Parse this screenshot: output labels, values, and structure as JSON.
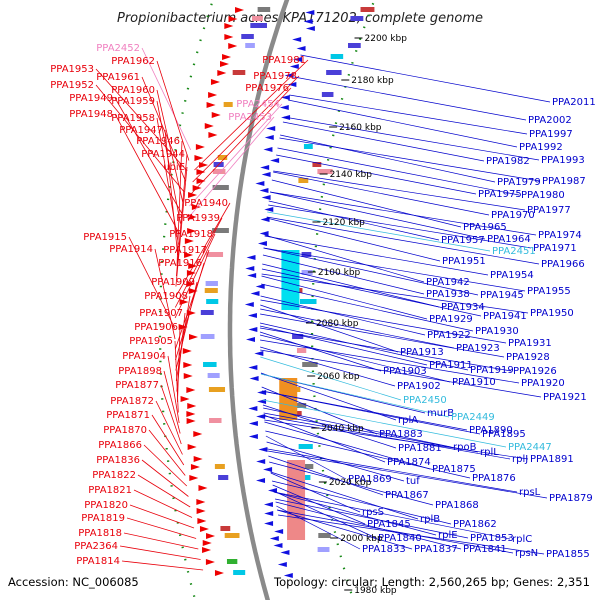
{
  "title": "Propionibacterium acnes KPA171202, complete genome",
  "footer": {
    "accession": "Accession: NC_006085",
    "topology": "Topology: circular; Length: 2,560,265 bp; Genes: 2,351"
  },
  "colors": {
    "left_label": "#e8000b",
    "right_label": "#0000cc",
    "rna_label_left": "#f080c0",
    "rna_label_right": "#33bbdd",
    "backbone": "#8a8a8a",
    "tick_dots": "#1a8a1a"
  },
  "ruler": [
    "2200 kbp",
    "2180 kbp",
    "2160 kbp",
    "2140 kbp",
    "2120 kbp",
    "2100 kbp",
    "2080 kbp",
    "2060 kbp",
    "2040 kbp",
    "2020 kbp",
    "2000 kbp",
    "1980 kbp"
  ],
  "left_labels": [
    {
      "text": "PPA2452",
      "kind": "rna"
    },
    {
      "text": "PPA1962",
      "kind": "gene"
    },
    {
      "text": "PPA1953",
      "kind": "gene"
    },
    {
      "text": "PPA1961",
      "kind": "gene"
    },
    {
      "text": "PPA1952",
      "kind": "gene"
    },
    {
      "text": "PPA1960",
      "kind": "gene"
    },
    {
      "text": "PPA1949",
      "kind": "gene"
    },
    {
      "text": "PPA1959",
      "kind": "gene"
    },
    {
      "text": "PPA1948",
      "kind": "gene"
    },
    {
      "text": "PPA1958",
      "kind": "gene"
    },
    {
      "text": "PPA1947",
      "kind": "gene"
    },
    {
      "text": "PPA1946",
      "kind": "gene"
    },
    {
      "text": "PPA1944",
      "kind": "gene"
    },
    {
      "text": "ubiE",
      "kind": "gene"
    },
    {
      "text": "PPA1940",
      "kind": "gene"
    },
    {
      "text": "PPA1939",
      "kind": "gene"
    },
    {
      "text": "PPA1918",
      "kind": "gene"
    },
    {
      "text": "PPA1915",
      "kind": "gene"
    },
    {
      "text": "PPA1914",
      "kind": "gene"
    },
    {
      "text": "PPA1917",
      "kind": "gene"
    },
    {
      "text": "PPA1916",
      "kind": "gene"
    },
    {
      "text": "PPA1909",
      "kind": "gene"
    },
    {
      "text": "PPA1908",
      "kind": "gene"
    },
    {
      "text": "PPA1907",
      "kind": "gene"
    },
    {
      "text": "PPA1906",
      "kind": "gene"
    },
    {
      "text": "PPA1905",
      "kind": "gene"
    },
    {
      "text": "PPA1904",
      "kind": "gene"
    },
    {
      "text": "PPA1898",
      "kind": "gene"
    },
    {
      "text": "PPA1877",
      "kind": "gene"
    },
    {
      "text": "PPA1872",
      "kind": "gene"
    },
    {
      "text": "PPA1871",
      "kind": "gene"
    },
    {
      "text": "PPA1870",
      "kind": "gene"
    },
    {
      "text": "PPA1866",
      "kind": "gene"
    },
    {
      "text": "PPA1836",
      "kind": "gene"
    },
    {
      "text": "PPA1822",
      "kind": "gene"
    },
    {
      "text": "PPA1821",
      "kind": "gene"
    },
    {
      "text": "PPA1820",
      "kind": "gene"
    },
    {
      "text": "PPA1819",
      "kind": "gene"
    },
    {
      "text": "PPA1818",
      "kind": "gene"
    },
    {
      "text": "PPA2364",
      "kind": "gene"
    },
    {
      "text": "PPA1814",
      "kind": "gene"
    }
  ],
  "inner_labels": [
    {
      "text": "PPA1981",
      "kind": "gene"
    },
    {
      "text": "PPA1978",
      "kind": "gene"
    },
    {
      "text": "PPA1976",
      "kind": "gene"
    },
    {
      "text": "PPA2454",
      "kind": "rna"
    },
    {
      "text": "PPA2453",
      "kind": "rna"
    }
  ],
  "right_labels": [
    {
      "text": "PPA2011",
      "kind": "gene"
    },
    {
      "text": "PPA2002",
      "kind": "gene"
    },
    {
      "text": "PPA1997",
      "kind": "gene"
    },
    {
      "text": "PPA1992",
      "kind": "gene"
    },
    {
      "text": "PPA1993",
      "kind": "gene"
    },
    {
      "text": "PPA1982",
      "kind": "gene"
    },
    {
      "text": "PPA1979",
      "kind": "gene"
    },
    {
      "text": "PPA1987",
      "kind": "gene"
    },
    {
      "text": "PPA1975",
      "kind": "gene"
    },
    {
      "text": "PPA1980",
      "kind": "gene"
    },
    {
      "text": "PPA1970",
      "kind": "gene"
    },
    {
      "text": "PPA1977",
      "kind": "gene"
    },
    {
      "text": "PPA1965",
      "kind": "gene"
    },
    {
      "text": "PPA1974",
      "kind": "gene"
    },
    {
      "text": "PPA1957",
      "kind": "gene"
    },
    {
      "text": "PPA1964",
      "kind": "gene"
    },
    {
      "text": "PPA1971",
      "kind": "gene"
    },
    {
      "text": "PPA2451",
      "kind": "rna"
    },
    {
      "text": "PPA1966",
      "kind": "gene"
    },
    {
      "text": "PPA1951",
      "kind": "gene"
    },
    {
      "text": "PPA1954",
      "kind": "gene"
    },
    {
      "text": "PPA1942",
      "kind": "gene"
    },
    {
      "text": "PPA1955",
      "kind": "gene"
    },
    {
      "text": "PPA1938",
      "kind": "gene"
    },
    {
      "text": "PPA1945",
      "kind": "gene"
    },
    {
      "text": "PPA1934",
      "kind": "gene"
    },
    {
      "text": "PPA1950",
      "kind": "gene"
    },
    {
      "text": "PPA1941",
      "kind": "gene"
    },
    {
      "text": "PPA1929",
      "kind": "gene"
    },
    {
      "text": "PPA1922",
      "kind": "gene"
    },
    {
      "text": "PPA1930",
      "kind": "gene"
    },
    {
      "text": "PPA1931",
      "kind": "gene"
    },
    {
      "text": "PPA1923",
      "kind": "gene"
    },
    {
      "text": "PPA1913",
      "kind": "gene"
    },
    {
      "text": "PPA1928",
      "kind": "gene"
    },
    {
      "text": "PPA1911",
      "kind": "gene"
    },
    {
      "text": "PPA1919",
      "kind": "gene"
    },
    {
      "text": "PPA1926",
      "kind": "gene"
    },
    {
      "text": "PPA1903",
      "kind": "gene"
    },
    {
      "text": "PPA1910",
      "kind": "gene"
    },
    {
      "text": "PPA1920",
      "kind": "gene"
    },
    {
      "text": "PPA1902",
      "kind": "gene"
    },
    {
      "text": "PPA1921",
      "kind": "gene"
    },
    {
      "text": "PPA2450",
      "kind": "rna"
    },
    {
      "text": "murB",
      "kind": "gene"
    },
    {
      "text": "rplA",
      "kind": "gene"
    },
    {
      "text": "PPA2449",
      "kind": "rna"
    },
    {
      "text": "PPA1890",
      "kind": "gene"
    },
    {
      "text": "PPA1883",
      "kind": "gene"
    },
    {
      "text": "PPA1895",
      "kind": "gene"
    },
    {
      "text": "rpoB",
      "kind": "gene"
    },
    {
      "text": "PPA2447",
      "kind": "rna"
    },
    {
      "text": "PPA1881",
      "kind": "gene"
    },
    {
      "text": "rplL",
      "kind": "gene"
    },
    {
      "text": "PPA1874",
      "kind": "gene"
    },
    {
      "text": "rplJ",
      "kind": "gene"
    },
    {
      "text": "PPA1891",
      "kind": "gene"
    },
    {
      "text": "PPA1875",
      "kind": "gene"
    },
    {
      "text": "PPA1869",
      "kind": "gene"
    },
    {
      "text": "tuf",
      "kind": "gene"
    },
    {
      "text": "PPA1876",
      "kind": "gene"
    },
    {
      "text": "rpsL",
      "kind": "gene"
    },
    {
      "text": "PPA1867",
      "kind": "gene"
    },
    {
      "text": "PPA1879",
      "kind": "gene"
    },
    {
      "text": "PPA1868",
      "kind": "gene"
    },
    {
      "text": "rpsS",
      "kind": "gene"
    },
    {
      "text": "rplB",
      "kind": "gene"
    },
    {
      "text": "PPA1862",
      "kind": "gene"
    },
    {
      "text": "PPA1845",
      "kind": "gene"
    },
    {
      "text": "PPA1840",
      "kind": "gene"
    },
    {
      "text": "rplE",
      "kind": "gene"
    },
    {
      "text": "PPA1853",
      "kind": "gene"
    },
    {
      "text": "rplC",
      "kind": "gene"
    },
    {
      "text": "PPA1833",
      "kind": "gene"
    },
    {
      "text": "PPA1837",
      "kind": "gene"
    },
    {
      "text": "PPA1841",
      "kind": "gene"
    },
    {
      "text": "rpsN",
      "kind": "gene"
    },
    {
      "text": "PPA1855",
      "kind": "gene"
    }
  ]
}
